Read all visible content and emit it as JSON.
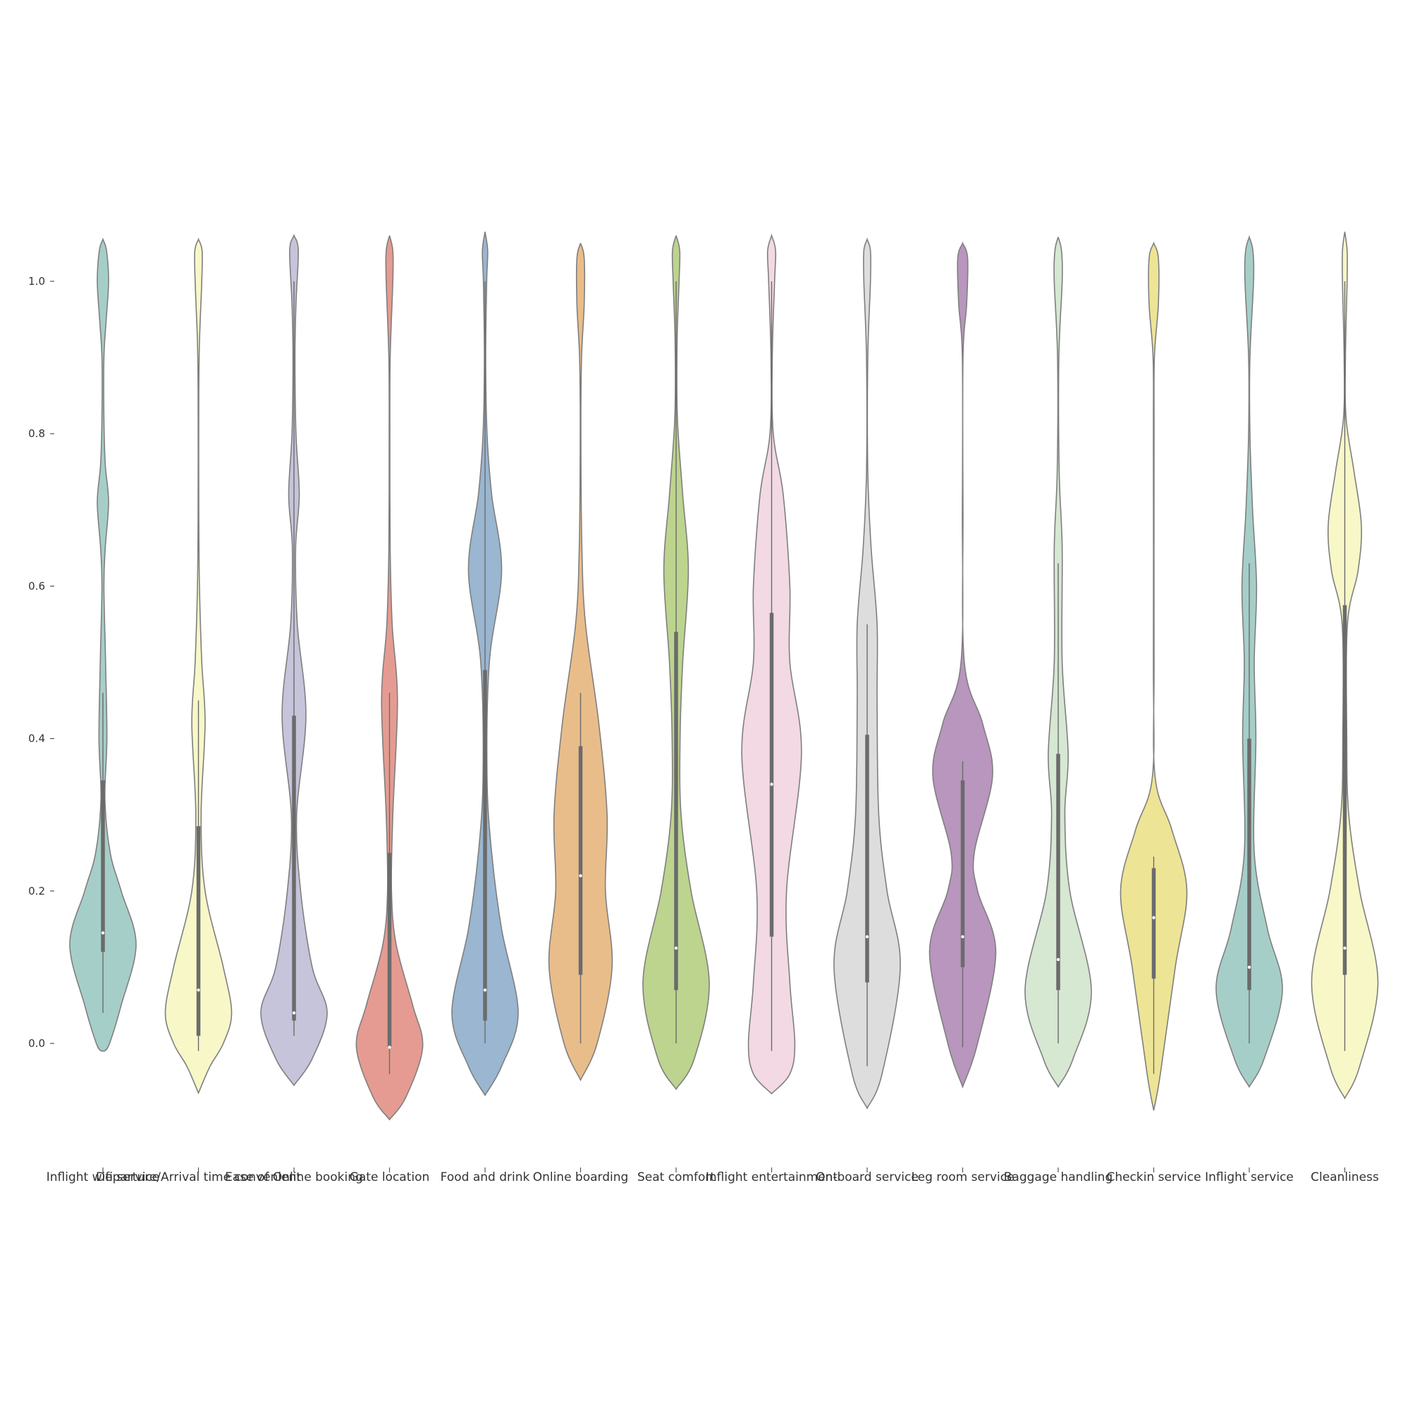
{
  "chart_data": {
    "type": "violin",
    "title": "",
    "xlabel": "",
    "ylabel": "",
    "ylim": [
      -0.15,
      1.15
    ],
    "yticks": [
      0.0,
      0.2,
      0.4,
      0.6,
      0.8,
      1.0
    ],
    "ytick_labels": [
      "0.0",
      "0.2",
      "0.4",
      "0.6",
      "0.8",
      "1.0"
    ],
    "grid": false,
    "categories": [
      "Inflight wifi service",
      "Departure/Arrival time convenient",
      "Ease of Online booking",
      "Gate location",
      "Food and drink",
      "Online boarding",
      "Seat comfort",
      "Inflight entertainment",
      "On-board service",
      "Leg room service",
      "Baggage handling",
      "Checkin service",
      "Inflight service",
      "Cleanliness"
    ],
    "colors": [
      "#a6cec8",
      "#f7f7c8",
      "#c6c4da",
      "#e59b91",
      "#9ab6d0",
      "#e9bd8a",
      "#bcd48e",
      "#f2d9e4",
      "#dddddd",
      "#b896bd",
      "#d6e7d2",
      "#eee495",
      "#a6cec8",
      "#f7f7c8"
    ],
    "series": [
      {
        "min": -0.01,
        "max": 1.055,
        "whisker": [
          0.04,
          0.46
        ],
        "q1": 0.12,
        "q3": 0.345,
        "median": 0.145,
        "density": [
          [
            -0.01,
            0.05
          ],
          [
            0.0,
            0.2
          ],
          [
            0.05,
            0.55
          ],
          [
            0.13,
            1.0
          ],
          [
            0.2,
            0.55
          ],
          [
            0.25,
            0.22
          ],
          [
            0.32,
            0.06
          ],
          [
            0.4,
            0.12
          ],
          [
            0.5,
            0.08
          ],
          [
            0.6,
            0.03
          ],
          [
            0.65,
            0.07
          ],
          [
            0.71,
            0.17
          ],
          [
            0.76,
            0.07
          ],
          [
            0.82,
            0.03
          ],
          [
            0.9,
            0.03
          ],
          [
            0.95,
            0.1
          ],
          [
            1.0,
            0.17
          ],
          [
            1.04,
            0.11
          ],
          [
            1.055,
            0.0
          ]
        ]
      },
      {
        "min": -0.065,
        "max": 1.055,
        "whisker": [
          -0.01,
          0.45
        ],
        "q1": 0.01,
        "q3": 0.285,
        "median": 0.07,
        "density": [
          [
            -0.065,
            0.0
          ],
          [
            -0.03,
            0.35
          ],
          [
            0.0,
            0.75
          ],
          [
            0.04,
            1.0
          ],
          [
            0.1,
            0.75
          ],
          [
            0.2,
            0.2
          ],
          [
            0.3,
            0.08
          ],
          [
            0.42,
            0.2
          ],
          [
            0.5,
            0.1
          ],
          [
            0.6,
            0.03
          ],
          [
            0.7,
            0.01
          ],
          [
            0.85,
            0.01
          ],
          [
            0.92,
            0.03
          ],
          [
            1.0,
            0.1
          ],
          [
            1.04,
            0.11
          ],
          [
            1.055,
            0.0
          ]
        ]
      },
      {
        "min": -0.055,
        "max": 1.06,
        "whisker": [
          0.01,
          1.0
        ],
        "q1": 0.03,
        "q3": 0.43,
        "median": 0.04,
        "density": [
          [
            -0.055,
            0.0
          ],
          [
            -0.02,
            0.55
          ],
          [
            0.04,
            1.0
          ],
          [
            0.1,
            0.55
          ],
          [
            0.2,
            0.2
          ],
          [
            0.3,
            0.08
          ],
          [
            0.43,
            0.36
          ],
          [
            0.55,
            0.1
          ],
          [
            0.65,
            0.05
          ],
          [
            0.72,
            0.16
          ],
          [
            0.8,
            0.06
          ],
          [
            0.9,
            0.03
          ],
          [
            0.97,
            0.06
          ],
          [
            1.04,
            0.13
          ],
          [
            1.06,
            0.0
          ]
        ]
      },
      {
        "min": -0.1,
        "max": 1.06,
        "whisker": [
          -0.04,
          0.46
        ],
        "q1": -0.005,
        "q3": 0.25,
        "median": -0.005,
        "density": [
          [
            -0.1,
            0.0
          ],
          [
            -0.07,
            0.5
          ],
          [
            -0.005,
            1.0
          ],
          [
            0.05,
            0.7
          ],
          [
            0.13,
            0.2
          ],
          [
            0.2,
            0.06
          ],
          [
            0.3,
            0.1
          ],
          [
            0.45,
            0.24
          ],
          [
            0.55,
            0.08
          ],
          [
            0.65,
            0.02
          ],
          [
            0.8,
            0.01
          ],
          [
            0.9,
            0.02
          ],
          [
            1.0,
            0.1
          ],
          [
            1.04,
            0.1
          ],
          [
            1.06,
            0.0
          ]
        ]
      },
      {
        "min": -0.068,
        "max": 1.065,
        "whisker": [
          0.0,
          1.0
        ],
        "q1": 0.03,
        "q3": 0.49,
        "median": 0.07,
        "density": [
          [
            -0.068,
            0.0
          ],
          [
            -0.03,
            0.5
          ],
          [
            0.04,
            1.0
          ],
          [
            0.15,
            0.5
          ],
          [
            0.25,
            0.2
          ],
          [
            0.35,
            0.06
          ],
          [
            0.5,
            0.13
          ],
          [
            0.62,
            0.5
          ],
          [
            0.72,
            0.2
          ],
          [
            0.8,
            0.06
          ],
          [
            0.9,
            0.02
          ],
          [
            1.0,
            0.05
          ],
          [
            1.04,
            0.08
          ],
          [
            1.065,
            0.0
          ]
        ]
      },
      {
        "min": -0.048,
        "max": 1.05,
        "whisker": [
          0.0,
          0.46
        ],
        "q1": 0.09,
        "q3": 0.39,
        "median": 0.22,
        "density": [
          [
            -0.048,
            0.0
          ],
          [
            0.0,
            0.5
          ],
          [
            0.1,
            0.95
          ],
          [
            0.2,
            0.75
          ],
          [
            0.3,
            0.8
          ],
          [
            0.42,
            0.55
          ],
          [
            0.55,
            0.15
          ],
          [
            0.65,
            0.04
          ],
          [
            0.8,
            0.01
          ],
          [
            0.9,
            0.03
          ],
          [
            0.97,
            0.11
          ],
          [
            1.03,
            0.11
          ],
          [
            1.05,
            0.0
          ]
        ]
      },
      {
        "min": -0.06,
        "max": 1.06,
        "whisker": [
          0.0,
          1.0
        ],
        "q1": 0.07,
        "q3": 0.54,
        "median": 0.125,
        "density": [
          [
            -0.06,
            0.0
          ],
          [
            -0.02,
            0.55
          ],
          [
            0.08,
            1.0
          ],
          [
            0.2,
            0.45
          ],
          [
            0.3,
            0.15
          ],
          [
            0.4,
            0.12
          ],
          [
            0.5,
            0.2
          ],
          [
            0.62,
            0.37
          ],
          [
            0.72,
            0.2
          ],
          [
            0.82,
            0.04
          ],
          [
            0.92,
            0.03
          ],
          [
            1.0,
            0.09
          ],
          [
            1.04,
            0.11
          ],
          [
            1.06,
            0.0
          ]
        ]
      },
      {
        "min": -0.066,
        "max": 1.06,
        "whisker": [
          -0.01,
          1.0
        ],
        "q1": 0.14,
        "q3": 0.565,
        "median": 0.34,
        "density": [
          [
            -0.066,
            0.0
          ],
          [
            -0.04,
            0.55
          ],
          [
            0.0,
            0.7
          ],
          [
            0.08,
            0.55
          ],
          [
            0.2,
            0.45
          ],
          [
            0.38,
            0.9
          ],
          [
            0.5,
            0.55
          ],
          [
            0.6,
            0.55
          ],
          [
            0.72,
            0.35
          ],
          [
            0.8,
            0.05
          ],
          [
            0.9,
            0.02
          ],
          [
            1.0,
            0.09
          ],
          [
            1.04,
            0.12
          ],
          [
            1.06,
            0.0
          ]
        ]
      },
      {
        "min": -0.085,
        "max": 1.055,
        "whisker": [
          -0.03,
          0.55
        ],
        "q1": 0.08,
        "q3": 0.405,
        "median": 0.14,
        "density": [
          [
            -0.085,
            0.0
          ],
          [
            -0.04,
            0.45
          ],
          [
            0.1,
            1.0
          ],
          [
            0.2,
            0.6
          ],
          [
            0.3,
            0.35
          ],
          [
            0.45,
            0.3
          ],
          [
            0.55,
            0.3
          ],
          [
            0.65,
            0.12
          ],
          [
            0.75,
            0.02
          ],
          [
            0.9,
            0.02
          ],
          [
            1.0,
            0.1
          ],
          [
            1.04,
            0.1
          ],
          [
            1.055,
            0.0
          ]
        ]
      },
      {
        "min": -0.057,
        "max": 1.05,
        "whisker": [
          -0.005,
          0.37
        ],
        "q1": 0.1,
        "q3": 0.345,
        "median": 0.14,
        "density": [
          [
            -0.057,
            0.0
          ],
          [
            0.0,
            0.45
          ],
          [
            0.12,
            1.0
          ],
          [
            0.2,
            0.45
          ],
          [
            0.25,
            0.35
          ],
          [
            0.35,
            0.9
          ],
          [
            0.42,
            0.6
          ],
          [
            0.5,
            0.05
          ],
          [
            0.7,
            0.01
          ],
          [
            0.9,
            0.01
          ],
          [
            0.97,
            0.12
          ],
          [
            1.03,
            0.15
          ],
          [
            1.05,
            0.0
          ]
        ]
      },
      {
        "min": -0.057,
        "max": 1.058,
        "whisker": [
          0.0,
          0.63
        ],
        "q1": 0.07,
        "q3": 0.38,
        "median": 0.11,
        "density": [
          [
            -0.057,
            0.0
          ],
          [
            -0.02,
            0.45
          ],
          [
            0.07,
            1.0
          ],
          [
            0.2,
            0.35
          ],
          [
            0.3,
            0.2
          ],
          [
            0.38,
            0.3
          ],
          [
            0.5,
            0.12
          ],
          [
            0.65,
            0.12
          ],
          [
            0.75,
            0.03
          ],
          [
            0.9,
            0.02
          ],
          [
            1.0,
            0.12
          ],
          [
            1.04,
            0.1
          ],
          [
            1.058,
            0.0
          ]
        ]
      },
      {
        "min": -0.088,
        "max": 1.05,
        "whisker": [
          -0.04,
          0.245
        ],
        "q1": 0.085,
        "q3": 0.23,
        "median": 0.165,
        "density": [
          [
            -0.088,
            0.0
          ],
          [
            -0.04,
            0.2
          ],
          [
            0.1,
            0.65
          ],
          [
            0.2,
            1.0
          ],
          [
            0.28,
            0.55
          ],
          [
            0.35,
            0.04
          ],
          [
            0.5,
            0.01
          ],
          [
            0.8,
            0.01
          ],
          [
            0.9,
            0.02
          ],
          [
            0.97,
            0.14
          ],
          [
            1.03,
            0.14
          ],
          [
            1.05,
            0.0
          ]
        ]
      },
      {
        "min": -0.057,
        "max": 1.058,
        "whisker": [
          0.0,
          0.63
        ],
        "q1": 0.07,
        "q3": 0.4,
        "median": 0.1,
        "density": [
          [
            -0.057,
            0.0
          ],
          [
            -0.02,
            0.45
          ],
          [
            0.07,
            1.0
          ],
          [
            0.15,
            0.55
          ],
          [
            0.25,
            0.15
          ],
          [
            0.4,
            0.2
          ],
          [
            0.5,
            0.15
          ],
          [
            0.6,
            0.22
          ],
          [
            0.7,
            0.1
          ],
          [
            0.8,
            0.02
          ],
          [
            0.9,
            0.02
          ],
          [
            1.0,
            0.13
          ],
          [
            1.04,
            0.11
          ],
          [
            1.058,
            0.0
          ]
        ]
      },
      {
        "min": -0.072,
        "max": 1.065,
        "whisker": [
          -0.01,
          1.0
        ],
        "q1": 0.09,
        "q3": 0.575,
        "median": 0.125,
        "density": [
          [
            -0.072,
            0.0
          ],
          [
            -0.03,
            0.45
          ],
          [
            0.08,
            1.0
          ],
          [
            0.2,
            0.45
          ],
          [
            0.3,
            0.12
          ],
          [
            0.4,
            0.06
          ],
          [
            0.55,
            0.08
          ],
          [
            0.62,
            0.4
          ],
          [
            0.68,
            0.5
          ],
          [
            0.75,
            0.28
          ],
          [
            0.82,
            0.04
          ],
          [
            0.9,
            0.02
          ],
          [
            1.0,
            0.07
          ],
          [
            1.04,
            0.07
          ],
          [
            1.065,
            0.0
          ]
        ]
      }
    ]
  }
}
